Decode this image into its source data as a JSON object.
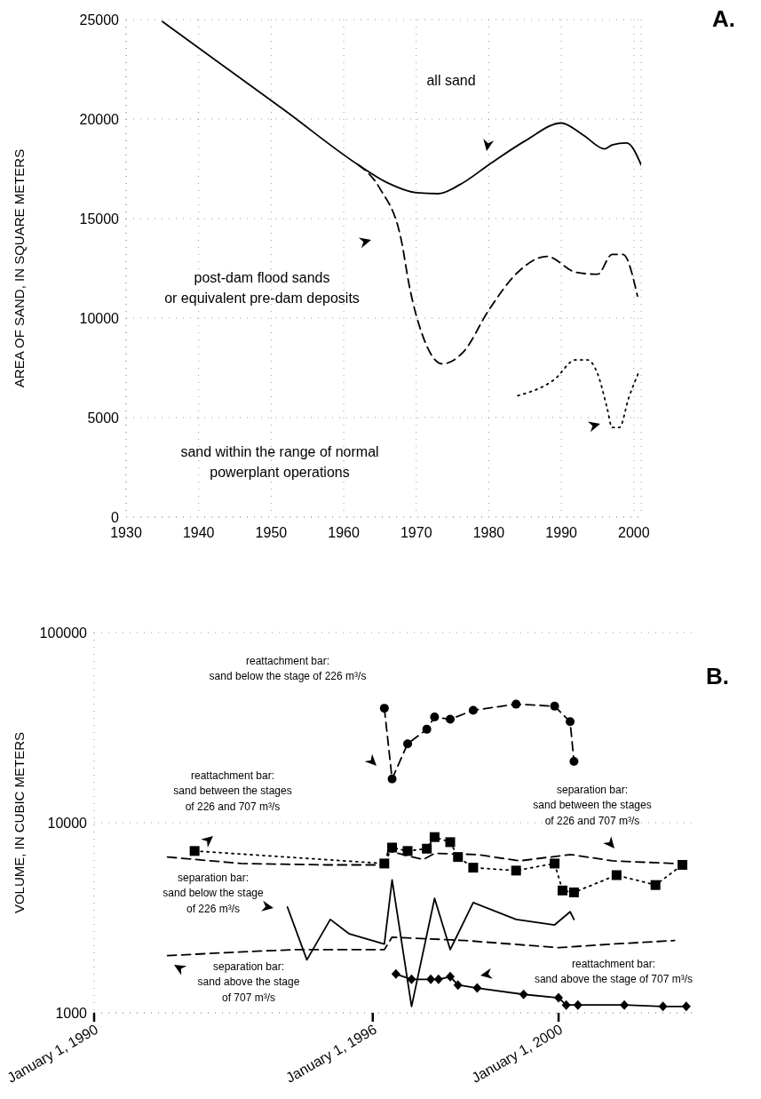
{
  "chart_data": [
    {
      "type": "line",
      "ylabel": "AREA OF SAND, IN SQUARE METERS",
      "annotations": [
        "A.",
        "all sand",
        "post-dam flood sands\nor equivalent pre-dam deposits",
        "sand within the range of normal\npowerplant operations"
      ],
      "xlim": [
        1930,
        2001
      ],
      "xticks": [
        1930,
        1940,
        1950,
        1960,
        1970,
        1980,
        1990,
        2000
      ],
      "ylim": [
        0,
        25000
      ],
      "yticks": [
        0,
        5000,
        10000,
        15000,
        20000,
        25000
      ],
      "grid": true,
      "series": [
        {
          "color": "#000000",
          "line_style": "solid",
          "x": [
            1935,
            1952,
            1962,
            1966,
            1970,
            1973,
            1976,
            1980,
            1985,
            1990,
            1993,
            1996,
            1997,
            1999,
            2001
          ],
          "values": [
            24900,
            20400,
            17700,
            16800,
            16300,
            16250,
            16700,
            17700,
            18900,
            19800,
            19200,
            18500,
            18700,
            18800,
            17700
          ]
        },
        {
          "color": "#000000",
          "line_style": "dashed",
          "x": [
            1962,
            1965,
            1968,
            1969,
            1971,
            1973.6,
            1976.5,
            1980,
            1984,
            1988,
            1992,
            1995,
            1997,
            1998.5,
            2000.5
          ],
          "values": [
            17700,
            16500,
            13800,
            11700,
            9000,
            7700,
            8300,
            10400,
            12300,
            13100,
            12300,
            12200,
            13200,
            13200,
            11100
          ]
        },
        {
          "color": "#000000",
          "line_style": "dotted",
          "x": [
            1984,
            1989,
            1992,
            1993.6,
            1995,
            1996.3,
            1997,
            1998,
            1999.3,
            2000.7
          ],
          "values": [
            6100,
            6900,
            7900,
            7900,
            7200,
            5500,
            4500,
            4500,
            6000,
            7300
          ]
        }
      ]
    },
    {
      "type": "line",
      "ylabel": "VOLUME, IN CUBIC METERS",
      "annotations": [
        "B.",
        "reattachment bar:\nsand below the stage of 226 m³/s",
        "reattachment bar:\nsand between the stages\nof 226 and 707 m³/s",
        "separation bar:\nsand between the stages\nof 226 and 707 m³/s",
        "separation bar:\nsand below the stage\nof 226 m³/s",
        "separation bar:\nsand above the stage\nof 707 m³/s",
        "reattachment bar:\nsand above the stage of 707 m³/s"
      ],
      "xlim": [
        "1990-01-01",
        "2003-01-01"
      ],
      "xticks": [
        {
          "value": "1990-01-01",
          "label": "January 1, 1990"
        },
        {
          "value": "1996-01-01",
          "label": "January 1, 1996"
        },
        {
          "value": "2000-01-01",
          "label": "January 1, 2000"
        }
      ],
      "log": true,
      "ylim": [
        1000,
        100000
      ],
      "yticks": [
        1000,
        10000,
        100000
      ],
      "grid": "y",
      "series": [
        {
          "color": "#000000",
          "line_style": "dashed",
          "marker": "circle",
          "x": [
            "1996-04",
            "1996-06",
            "1996-10",
            "1997-03",
            "1997-05",
            "1997-09",
            "1998-03",
            "1999-02",
            "1999-12",
            "2000-04",
            "2000-05"
          ],
          "values": [
            40000,
            17000,
            26000,
            31000,
            36000,
            35000,
            39000,
            42000,
            41000,
            34000,
            21000
          ]
        },
        {
          "color": "#000000",
          "line_style": "dotted",
          "marker": "square",
          "x": [
            "1992-03",
            "1996-04",
            "1996-06",
            "1996-10",
            "1997-03",
            "1997-05",
            "1997-09",
            "1997-11",
            "1998-03",
            "1999-02",
            "1999-12",
            "2000-02",
            "2000-05",
            "2001-04",
            "2002-02",
            "2002-09"
          ],
          "values": [
            7100,
            6100,
            7400,
            7100,
            7300,
            8400,
            7900,
            6600,
            5800,
            5600,
            6100,
            4400,
            4300,
            5300,
            4700,
            6000
          ]
        },
        {
          "color": "#000000",
          "line_style": "dashed",
          "x": [
            "1991-08",
            "1993-03",
            "1995-01",
            "1996-04",
            "1996-05",
            "1997-02",
            "1997-05",
            "1998-04",
            "1999-03",
            "2000-04",
            "2001-03",
            "2002-07"
          ],
          "values": [
            6600,
            6100,
            6000,
            6000,
            7100,
            6400,
            6900,
            6800,
            6300,
            6800,
            6300,
            6100
          ]
        },
        {
          "color": "#000000",
          "line_style": "solid",
          "x": [
            "1994-03",
            "1994-08",
            "1995-02",
            "1995-07",
            "1996-04",
            "1996-06",
            "1996-11",
            "1997-05",
            "1997-09",
            "1998-03",
            "1999-02",
            "1999-12",
            "2000-04",
            "2000-05"
          ],
          "values": [
            3600,
            1900,
            3100,
            2600,
            2300,
            5000,
            1080,
            4000,
            2150,
            3800,
            3100,
            2900,
            3400,
            3100
          ]
        },
        {
          "color": "#000000",
          "line_style": "dashed",
          "x": [
            "1991-08",
            "1993-05",
            "1994-05",
            "1996-04",
            "1996-06",
            "1998-01",
            "2000-01",
            "2001-03",
            "2002-07"
          ],
          "values": [
            2000,
            2100,
            2150,
            2150,
            2500,
            2400,
            2200,
            2300,
            2400
          ]
        },
        {
          "color": "#000000",
          "line_style": "solid",
          "marker": "diamond",
          "x": [
            "1996-07",
            "1996-11",
            "1997-04",
            "1997-06",
            "1997-09",
            "1997-11",
            "1998-04",
            "1999-04",
            "2000-01",
            "2000-03",
            "2000-06",
            "2001-06",
            "2002-04",
            "2002-10"
          ],
          "values": [
            1600,
            1500,
            1500,
            1500,
            1550,
            1400,
            1350,
            1250,
            1200,
            1100,
            1100,
            1100,
            1080,
            1080
          ]
        }
      ]
    }
  ]
}
